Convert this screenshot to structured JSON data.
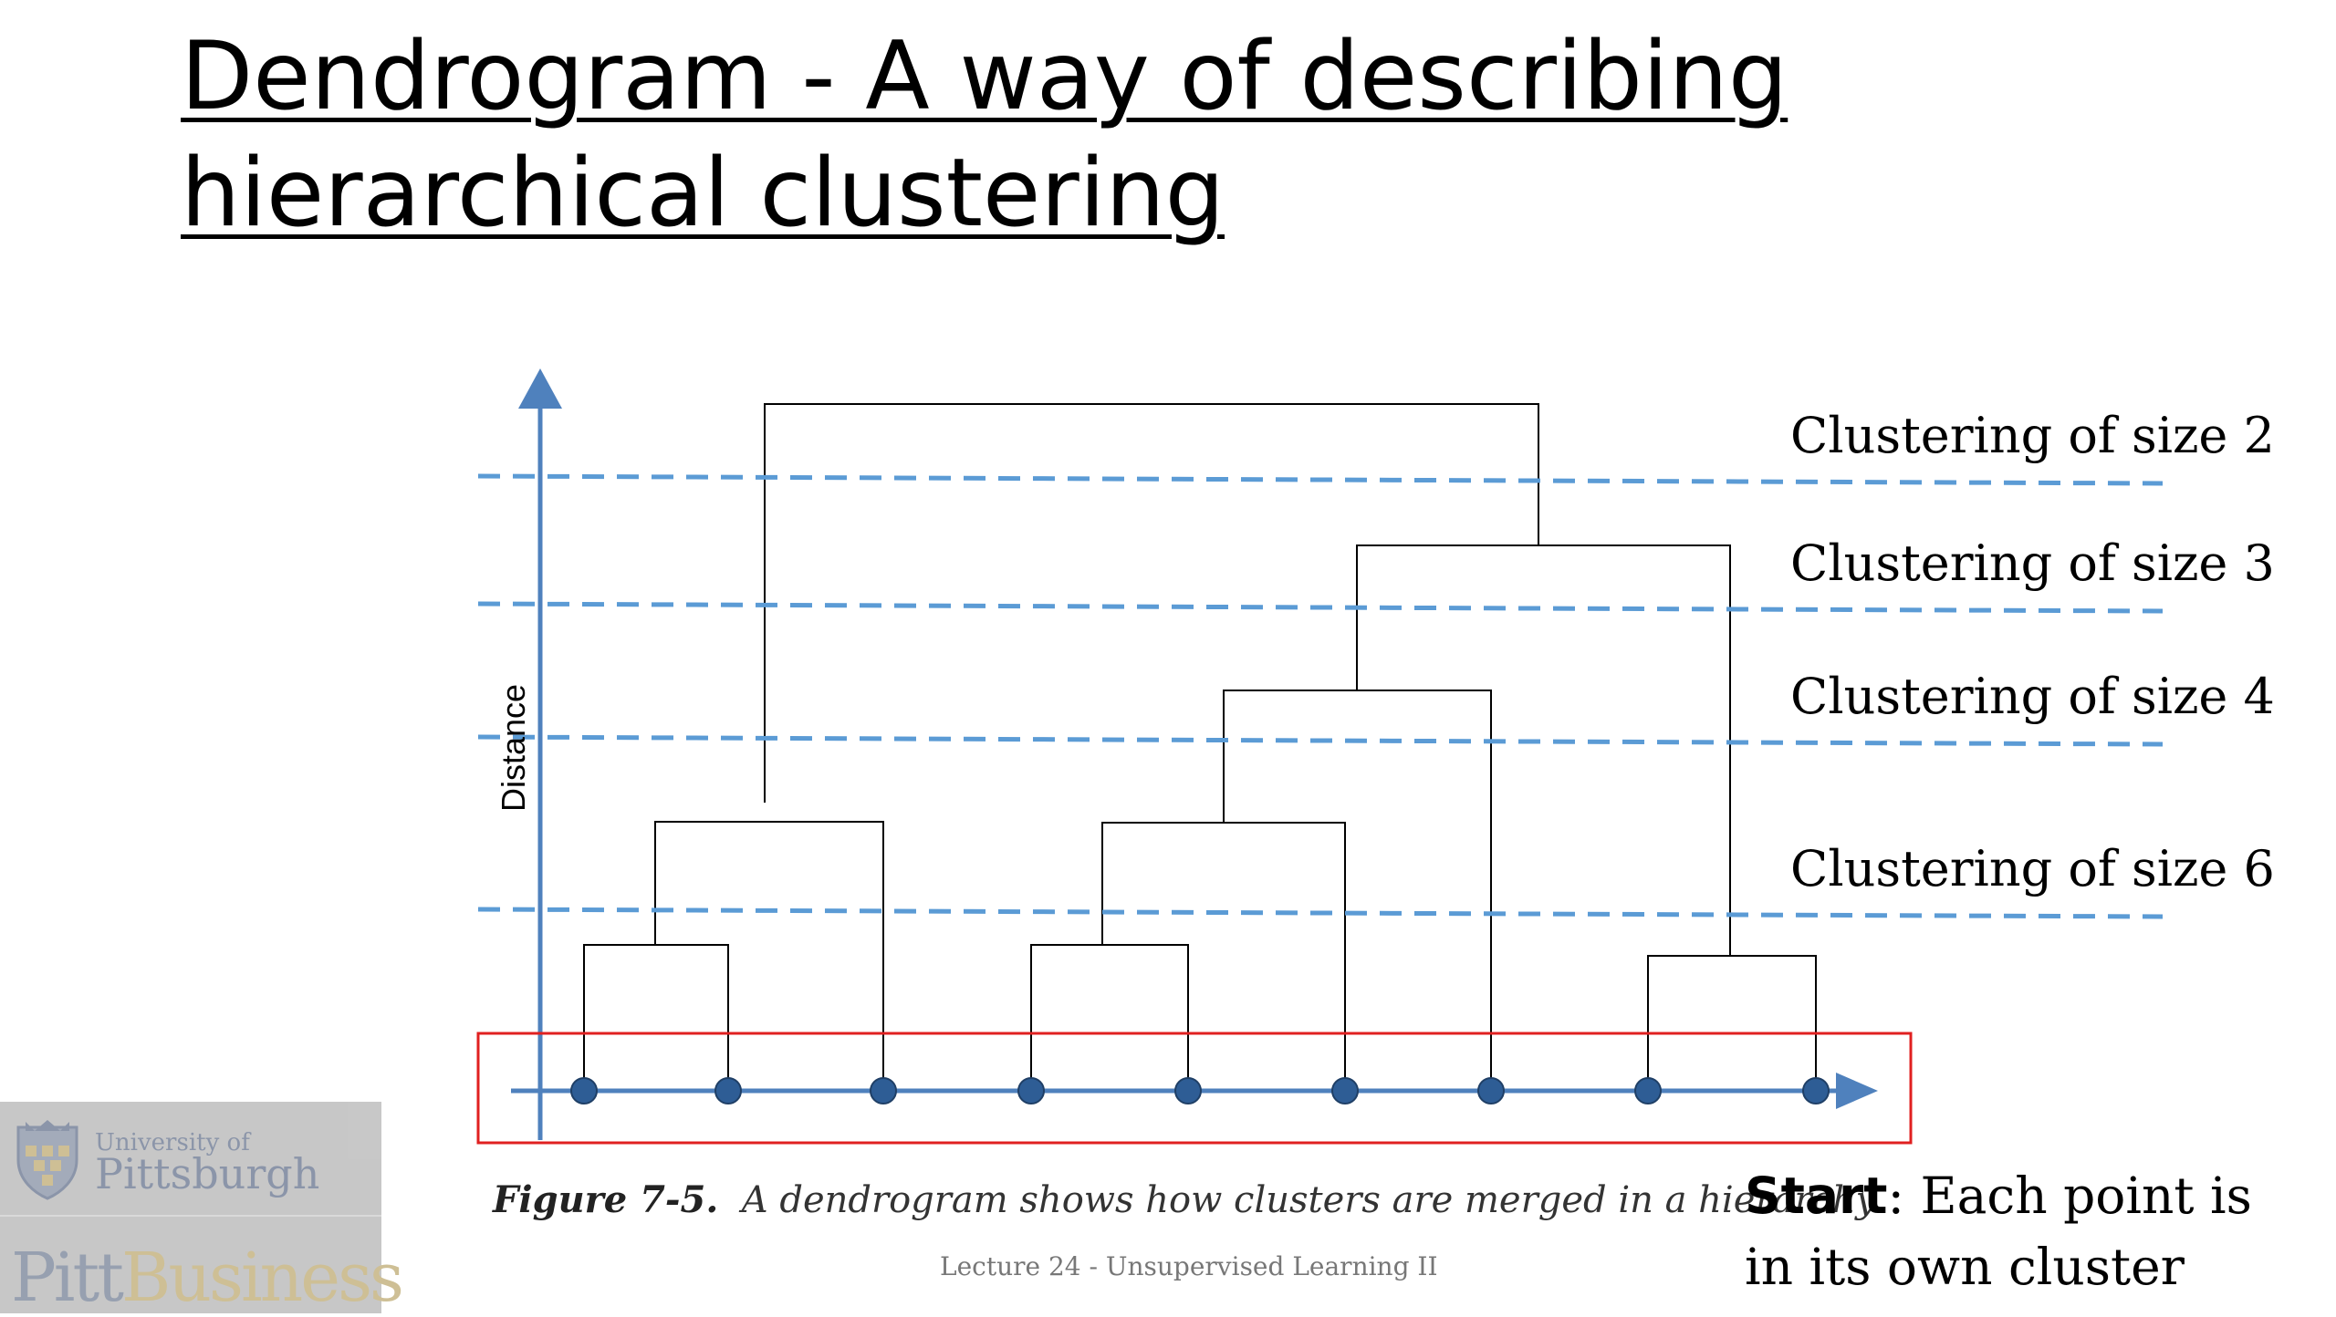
{
  "title": {
    "line1": "Dendrogram - A way of describing",
    "line2": "hierarchical clustering"
  },
  "axis": {
    "ylabel": "Distance"
  },
  "thresholds": [
    {
      "label": "Clustering of size 2"
    },
    {
      "label": "Clustering of size 3"
    },
    {
      "label": "Clustering of size 4"
    },
    {
      "label": "Clustering of size 6"
    }
  ],
  "leaves_count": 9,
  "caption": {
    "figure": "Figure 7-5.",
    "text": "A dendrogram shows how clusters are merged in a hierarchy"
  },
  "start_note": {
    "bold": "Start",
    "text": ": Each point is in its own cluster"
  },
  "footer": "Lecture 24 - Unsupervised Learning II",
  "logo": {
    "university_small": "University of",
    "university_big": "Pittsburgh",
    "business_a": "Pitt",
    "business_b": "Business"
  },
  "colors": {
    "axis": "#4f81bd",
    "dashed": "#5b9bd5",
    "tree": "#000000",
    "highlight_box": "#e02020"
  }
}
